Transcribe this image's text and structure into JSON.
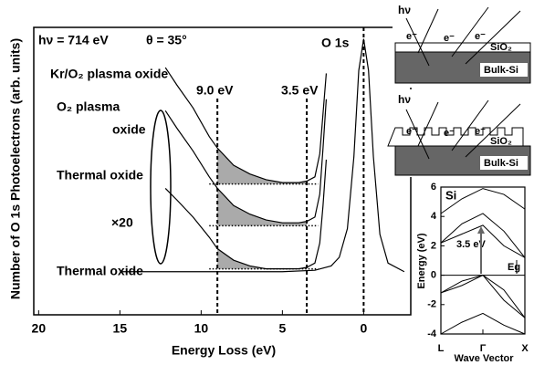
{
  "chart_data": [
    {
      "type": "line",
      "x_label": "Energy Loss (eV)",
      "y_label": "Number of O 1s Photoelectrons (arb. units)",
      "xlim": [
        20.3,
        -2.9
      ],
      "ylim": [
        0,
        100
      ],
      "xticks": [
        20,
        15,
        10,
        5,
        0
      ],
      "series": [
        {
          "color": "#000000",
          "x": [
            15,
            10,
            5,
            3,
            2,
            1.5,
            1,
            0.6,
            0.3,
            0,
            -0.3,
            -0.6,
            -1,
            -1.5,
            -2.5
          ],
          "values": [
            15,
            15,
            15,
            15.5,
            17,
            20,
            30,
            55,
            85,
            96,
            85,
            55,
            28,
            18,
            15
          ]
        },
        {
          "color": "#000000",
          "baseline": 16,
          "x": [
            12.2,
            11.5,
            10.5,
            9.5,
            9,
            8,
            7,
            6,
            5,
            4,
            3.5,
            3,
            2.7,
            2.5,
            2.3
          ],
          "values": [
            44,
            40,
            34,
            27,
            23,
            19,
            17,
            16,
            16,
            16,
            16.5,
            18,
            25,
            38,
            54
          ]
        },
        {
          "color": "#000000",
          "baseline": 31,
          "x": [
            12.2,
            11.5,
            10.5,
            9.5,
            9,
            8,
            7,
            6,
            5,
            4,
            3.5,
            3,
            2.7,
            2.5,
            2.3
          ],
          "values": [
            71,
            65,
            57,
            48,
            44,
            38,
            35,
            33,
            32,
            32,
            32.5,
            34,
            42,
            58,
            75
          ]
        },
        {
          "color": "#000000",
          "baseline": 45.5,
          "x": [
            12.2,
            11.5,
            10.5,
            9.5,
            9,
            8,
            7,
            6,
            5,
            4,
            3.5,
            3,
            2.7,
            2.5,
            2.3
          ],
          "values": [
            86,
            80,
            72,
            62,
            58,
            52,
            49,
            47,
            46,
            46,
            46.5,
            48,
            56,
            70,
            84
          ]
        }
      ],
      "baseline_x": [
        9.5,
        2.8
      ],
      "shade_color": "#aaaaaa",
      "vlines": [
        9.0,
        3.5,
        0
      ],
      "annotations": [
        "hν = 714 eV",
        "θ = 35°",
        "O 1s",
        "Kr/O₂ plasma oxide",
        "O₂  plasma",
        "oxide",
        "Thermal oxide",
        "×20",
        "Thermal oxide",
        "9.0 eV",
        "3.5 eV"
      ]
    },
    {
      "type": "line",
      "title": "Si",
      "x_label": "Wave Vector",
      "y_label": "Energy (eV)",
      "xlim": [
        -1,
        1
      ],
      "ylim": [
        -4,
        6
      ],
      "xticks": [
        {
          "value": -1,
          "label": "L"
        },
        {
          "value": 0,
          "label": "Γ"
        },
        {
          "value": 1,
          "label": "X"
        }
      ],
      "yticks": [
        -4,
        -2,
        0,
        2,
        4,
        6
      ],
      "series": [
        {
          "color": "#000000",
          "x": [
            -1,
            -0.5,
            0,
            0.5,
            1
          ],
          "values": [
            -1.2,
            -0.4,
            0,
            -1.0,
            -2.9
          ]
        },
        {
          "color": "#000000",
          "x": [
            -1,
            -0.5,
            0,
            0.5,
            1
          ],
          "values": [
            -1.2,
            -0.7,
            0,
            -1.7,
            -2.9
          ]
        },
        {
          "color": "#000000",
          "x": [
            -1,
            -0.5,
            0,
            0.5,
            1
          ],
          "values": [
            -4,
            -3.2,
            -2.6,
            -3.4,
            -4
          ]
        },
        {
          "color": "#000000",
          "x": [
            -1,
            -0.5,
            0,
            0.5,
            1
          ],
          "values": [
            2.2,
            2.8,
            3.4,
            2.0,
            1.2
          ]
        },
        {
          "color": "#000000",
          "x": [
            -1,
            -0.5,
            0,
            0.5,
            1
          ],
          "values": [
            2.2,
            3.5,
            4.2,
            3.0,
            1.2
          ]
        },
        {
          "color": "#000000",
          "x": [
            -1,
            -0.5,
            0,
            0.5,
            1
          ],
          "values": [
            4.2,
            5.2,
            5.9,
            5.5,
            4.5
          ]
        }
      ],
      "annotations": [
        "3.5 eV",
        "Eg"
      ]
    }
  ],
  "diagrams": [
    {
      "labels": [
        "hν",
        "e⁻",
        "e⁻",
        "e⁻",
        "SiO₂",
        "Bulk-Si"
      ]
    },
    {
      "labels": [
        "hν",
        "e⁻",
        "e⁻",
        "e⁻",
        "SiO₂",
        "Bulk-Si"
      ]
    }
  ]
}
